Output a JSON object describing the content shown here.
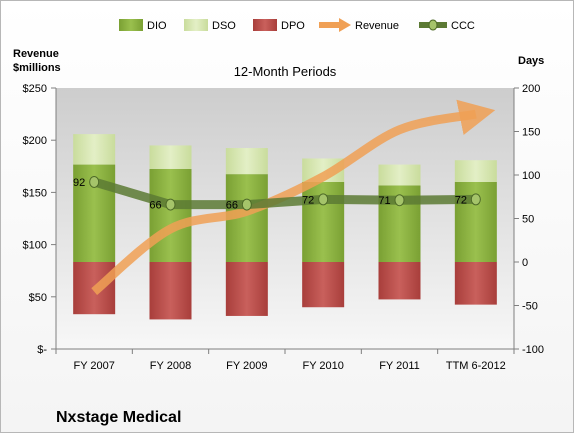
{
  "chart_data": {
    "type": "bar",
    "title": "12-Month Periods",
    "company": "Nxstage Medical",
    "left_axis": {
      "label_line1": "Revenue",
      "label_line2": "$millions",
      "ylim": [
        0,
        250
      ],
      "ticks": [
        0,
        50,
        100,
        150,
        200,
        250
      ],
      "tick_labels": [
        "$-",
        "$50",
        "$100",
        "$150",
        "$200",
        "$250"
      ]
    },
    "right_axis": {
      "label": "Days",
      "ylim": [
        -100,
        200
      ],
      "ticks": [
        -100,
        -50,
        0,
        50,
        100,
        150,
        200
      ],
      "tick_labels": [
        "-100",
        "-50",
        "0",
        "50",
        "100",
        "150",
        "200"
      ]
    },
    "categories": [
      "FY 2007",
      "FY 2008",
      "FY 2009",
      "FY 2010",
      "FY 2011",
      "TTM 6-2012"
    ],
    "legend": [
      "DIO",
      "DSO",
      "DPO",
      "Revenue",
      "CCC"
    ],
    "series": [
      {
        "name": "DIO",
        "axis": "right",
        "stack": "positive",
        "color": "#8cb03f",
        "values": [
          112,
          107,
          101,
          92,
          88,
          92
        ]
      },
      {
        "name": "DSO",
        "axis": "right",
        "stack": "positive",
        "color": "#d6e6b0",
        "values": [
          35,
          27,
          30,
          27,
          24,
          25
        ]
      },
      {
        "name": "DPO",
        "axis": "right",
        "stack": "negative",
        "color": "#c0504d",
        "values": [
          -60,
          -66,
          -62,
          -52,
          -43,
          -49
        ]
      },
      {
        "name": "Revenue",
        "axis": "left",
        "type": "line",
        "color": "#f0a055",
        "values": [
          55,
          115,
          132,
          165,
          210,
          225
        ]
      },
      {
        "name": "CCC",
        "axis": "right",
        "type": "line",
        "color": "#5c7a34",
        "values": [
          92,
          66,
          66,
          72,
          71,
          72
        ],
        "data_labels": [
          "92",
          "66",
          "66",
          "72",
          "71",
          "72"
        ]
      }
    ],
    "grid": false,
    "legend_position": "top"
  }
}
